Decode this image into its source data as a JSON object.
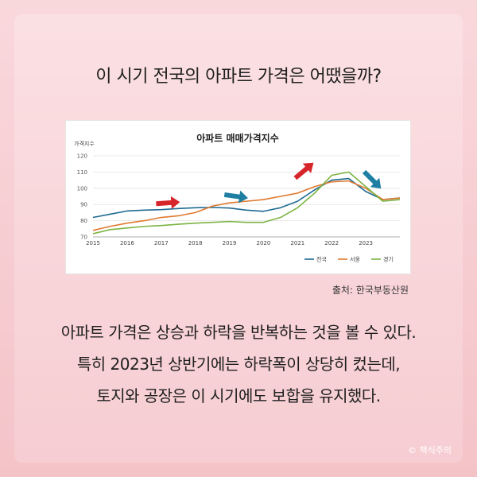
{
  "headline": "이 시기 전국의 아파트 가격은 어땠을까?",
  "source": "출처: 한국부동산원",
  "body_lines": [
    "아파트 가격은 상승과 하락을 반복하는 것을 볼 수 있다.",
    "특히 2023년 상반기에는 하락폭이 상당히 컸는데,",
    "토지와 공장은 이 시기에도 보합을 유지했다."
  ],
  "copyright": "© 책식주의",
  "colors": {
    "전국": "#1f6b93",
    "서울": "#e0792f",
    "경기": "#7cb342",
    "arrow_up": "#d7262b",
    "arrow_down": "#1f7fa3"
  },
  "chart_data": {
    "type": "line",
    "title": "아파트 매매가격지수",
    "ylabel": "가격지수",
    "ylim": [
      70,
      120
    ],
    "yticks": [
      70,
      80,
      90,
      100,
      110,
      120
    ],
    "xticks": [
      "2015",
      "2016",
      "2017",
      "2018",
      "2019",
      "2020",
      "2021",
      "2022",
      "2023"
    ],
    "xlim": [
      2015,
      2024
    ],
    "legend_position": "bottom-right",
    "grid": true,
    "x": [
      2015,
      2015.5,
      2016,
      2016.5,
      2017,
      2017.5,
      2018,
      2018.5,
      2019,
      2019.5,
      2020,
      2020.5,
      2021,
      2021.5,
      2022,
      2022.5,
      2023,
      2023.5,
      2024
    ],
    "series": [
      {
        "name": "전국",
        "values": [
          82,
          84,
          86,
          86.5,
          86.8,
          87.5,
          88,
          88.2,
          87.8,
          86.5,
          85.8,
          88,
          92,
          99,
          105,
          106,
          98,
          93,
          94
        ]
      },
      {
        "name": "서울",
        "values": [
          74,
          76.5,
          78.5,
          80,
          82,
          83,
          85,
          89,
          91,
          92,
          93,
          95,
          97,
          101,
          104,
          104.5,
          100,
          93,
          94
        ]
      },
      {
        "name": "경기",
        "values": [
          72,
          74.5,
          75.5,
          76.5,
          77,
          77.8,
          78.5,
          79,
          79.5,
          79,
          79,
          82,
          88,
          97,
          108,
          110,
          101,
          92,
          93
        ]
      }
    ],
    "annotations": [
      {
        "type": "arrow-up",
        "x": 2017.2,
        "y": 91,
        "color": "red"
      },
      {
        "type": "arrow-up",
        "x": 2019.2,
        "y": 95,
        "color": "blue"
      },
      {
        "type": "arrow-up",
        "x": 2021.2,
        "y": 111,
        "color": "red"
      },
      {
        "type": "arrow-down",
        "x": 2023.2,
        "y": 105,
        "color": "blue"
      }
    ]
  }
}
